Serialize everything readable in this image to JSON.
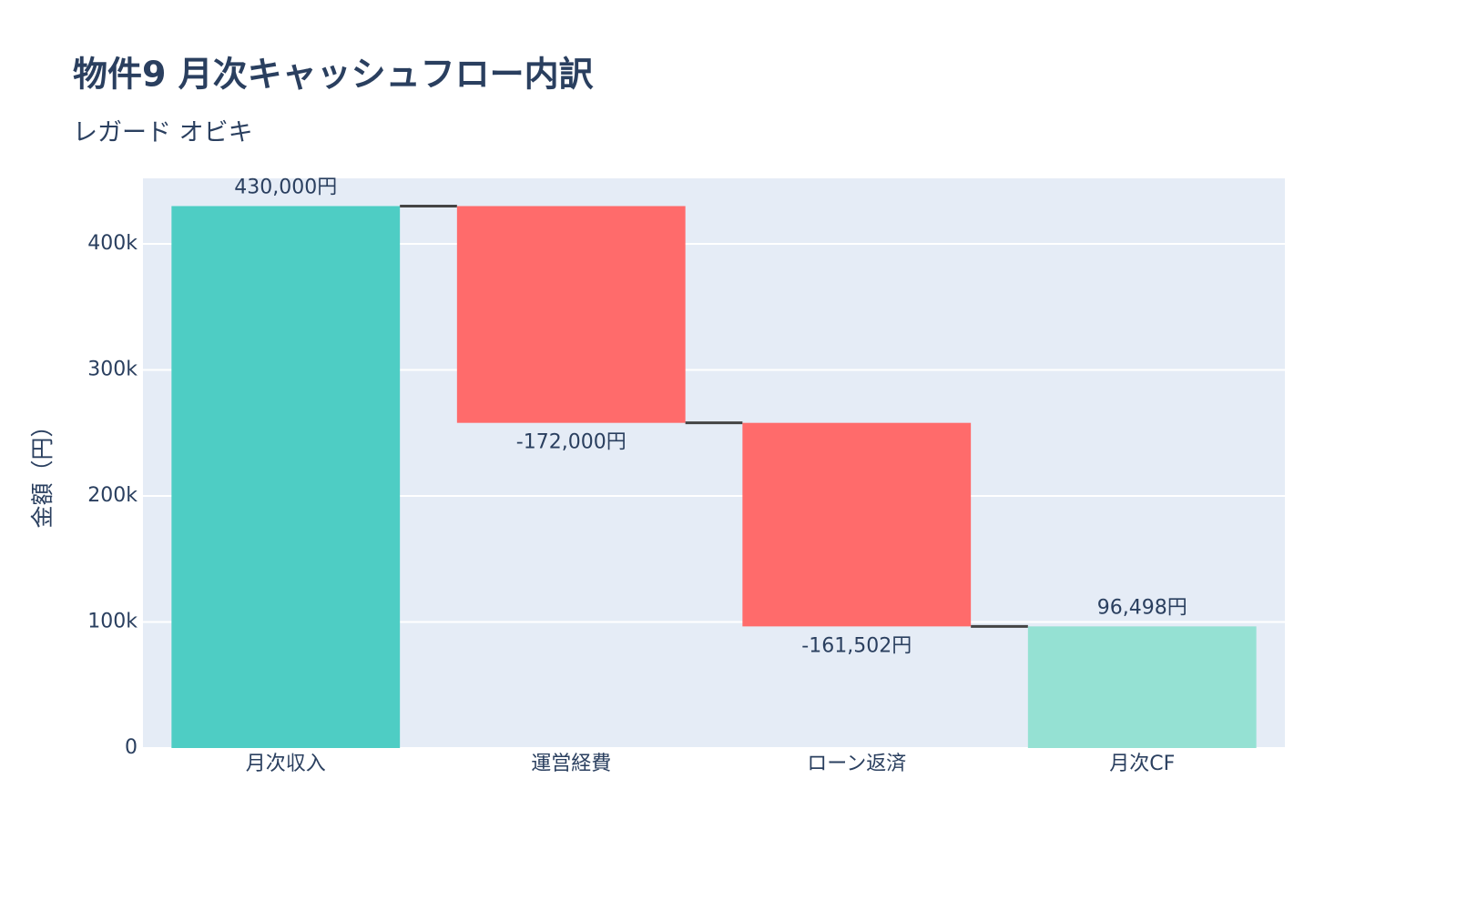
{
  "chart_data": {
    "type": "waterfall",
    "title": "物件9 月次キャッシュフロー内訳",
    "subtitle": "レガード オビキ",
    "y_label": "金額（円）",
    "categories": [
      "月次収入",
      "運営経費",
      "ローン返済",
      "月次CF"
    ],
    "values": [
      430000,
      -172000,
      -161502,
      96498
    ],
    "value_labels": [
      "430,000円",
      "-172,000円",
      "-161,502円",
      "96,498円"
    ],
    "measure": [
      "absolute",
      "relative",
      "relative",
      "total"
    ],
    "colors": {
      "increasing": "#4ecdc4",
      "decreasing": "#ff6b6b",
      "total": "#95e1d3",
      "connector": "#444444"
    },
    "ylim": [
      0,
      452000
    ],
    "yticks": [
      0,
      {
        "value": 100000,
        "label": "100k"
      },
      {
        "value": 200000,
        "label": "200k"
      },
      {
        "value": 300000,
        "label": "300k"
      },
      {
        "value": 400000,
        "label": "400k"
      }
    ],
    "grid": true
  }
}
